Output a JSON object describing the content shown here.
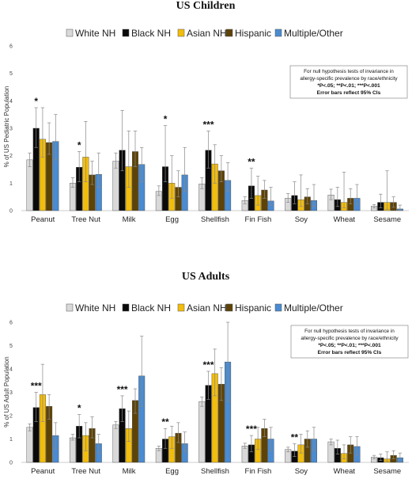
{
  "colors": {
    "White NH": "#d9d9d9",
    "Black NH": "#0a0a0a",
    "Asian NH": "#f2bd0d",
    "Hispanic": "#5e4307",
    "Multiple/Other": "#4a8bd1"
  },
  "chart_data": [
    {
      "type": "bar",
      "title": "US Children",
      "ylabel": "% of US Pediatric Population",
      "ylim": [
        0,
        6
      ],
      "yticks": [
        0,
        1,
        2,
        3,
        4,
        5,
        6
      ],
      "legend_position": "top",
      "annotation": {
        "line1": "For null hypothesis tests of invariance in",
        "line2": "allergy-specific prevalence by race/ethnicity",
        "line3": "*P<.05; **P<.01; ***P<.001",
        "line4": "Error bars reflect 95% CIs"
      },
      "categories": [
        "Peanut",
        "Tree Nut",
        "Milk",
        "Egg",
        "Shellfish",
        "Fin Fish",
        "Soy",
        "Wheat",
        "Sesame"
      ],
      "significance": [
        "*",
        "*",
        "",
        "*",
        "***",
        "**",
        "",
        "",
        ""
      ],
      "series": [
        {
          "name": "White NH",
          "values": [
            1.85,
            1.0,
            1.8,
            0.7,
            0.97,
            0.37,
            0.45,
            0.57,
            0.16
          ],
          "err_low": [
            1.6,
            0.85,
            1.55,
            0.55,
            0.8,
            0.25,
            0.3,
            0.4,
            0.1
          ],
          "err_high": [
            2.1,
            1.2,
            2.1,
            0.9,
            1.2,
            0.5,
            0.62,
            0.78,
            0.22
          ]
        },
        {
          "name": "Black NH",
          "values": [
            3.0,
            1.58,
            2.2,
            1.6,
            2.2,
            0.9,
            0.55,
            0.4,
            0.3
          ],
          "err_low": [
            2.3,
            1.05,
            1.45,
            1.05,
            1.55,
            0.45,
            0.25,
            0.15,
            0.1
          ],
          "err_high": [
            3.75,
            2.15,
            3.65,
            3.1,
            2.9,
            1.55,
            1.05,
            0.85,
            0.6
          ]
        },
        {
          "name": "Asian NH",
          "values": [
            2.6,
            1.95,
            1.6,
            1.0,
            1.7,
            0.55,
            0.4,
            0.3,
            0.3
          ],
          "err_low": [
            1.95,
            1.05,
            0.85,
            0.45,
            1.0,
            0.2,
            0.15,
            0.1,
            0.05
          ],
          "err_high": [
            3.75,
            3.25,
            2.9,
            2.0,
            2.4,
            1.25,
            1.3,
            1.4,
            1.45
          ]
        },
        {
          "name": "Hispanic",
          "values": [
            2.48,
            1.3,
            2.15,
            0.85,
            1.45,
            0.75,
            0.5,
            0.45,
            0.3
          ],
          "err_low": [
            2.05,
            0.95,
            1.6,
            0.5,
            1.05,
            0.45,
            0.25,
            0.25,
            0.12
          ],
          "err_high": [
            3.2,
            1.8,
            2.9,
            1.45,
            2.0,
            1.1,
            0.8,
            0.8,
            0.5
          ]
        },
        {
          "name": "Multiple/Other",
          "values": [
            2.52,
            1.32,
            1.68,
            1.3,
            1.1,
            0.35,
            0.37,
            0.45,
            0.06
          ],
          "err_low": [
            1.85,
            0.85,
            1.05,
            0.7,
            0.7,
            0.2,
            0.15,
            0.22,
            0.02
          ],
          "err_high": [
            3.5,
            2.1,
            2.3,
            2.3,
            1.75,
            0.85,
            0.95,
            0.95,
            0.2
          ]
        }
      ]
    },
    {
      "type": "bar",
      "title": "US Adults",
      "ylabel": "% of US Adult Population",
      "ylim": [
        0,
        6
      ],
      "yticks": [
        0,
        1,
        2,
        3,
        4,
        5,
        6
      ],
      "legend_position": "top",
      "annotation": {
        "line1": "For null hypothesis tests of invariance in",
        "line2": "allergy-specific prevalence by race/ethnicity",
        "line3": "*P<.05; **P<.01; ***P<.001",
        "line4": "Error bars reflect 95% CIs"
      },
      "categories": [
        "Peanut",
        "Tree Nut",
        "Milk",
        "Egg",
        "Shellfish",
        "Fin Fish",
        "Soy",
        "Wheat",
        "Sesame"
      ],
      "significance": [
        "***",
        "*",
        "***",
        "**",
        "***",
        "***",
        "**",
        "",
        ""
      ],
      "series": [
        {
          "name": "White NH",
          "values": [
            1.5,
            1.05,
            1.6,
            0.6,
            2.6,
            0.7,
            0.55,
            0.88,
            0.22
          ],
          "err_low": [
            1.35,
            0.95,
            1.45,
            0.5,
            2.4,
            0.6,
            0.45,
            0.75,
            0.15
          ],
          "err_high": [
            1.65,
            1.2,
            1.75,
            0.7,
            2.8,
            0.82,
            0.65,
            1.0,
            0.3
          ]
        },
        {
          "name": "Black NH",
          "values": [
            2.35,
            1.55,
            2.3,
            1.0,
            3.3,
            0.75,
            0.48,
            0.6,
            0.2
          ],
          "err_low": [
            1.75,
            1.05,
            1.75,
            0.6,
            2.7,
            0.45,
            0.25,
            0.35,
            0.08
          ],
          "err_high": [
            3.0,
            2.05,
            2.85,
            1.45,
            3.9,
            1.15,
            0.8,
            0.95,
            0.35
          ]
        },
        {
          "name": "Asian NH",
          "values": [
            2.9,
            1.15,
            1.45,
            1.1,
            3.8,
            1.0,
            0.75,
            0.38,
            0.15
          ],
          "err_low": [
            1.75,
            0.5,
            0.9,
            0.6,
            2.85,
            0.55,
            0.4,
            0.15,
            0.05
          ],
          "err_high": [
            4.2,
            1.7,
            2.2,
            1.55,
            4.85,
            1.5,
            1.2,
            0.75,
            0.45
          ]
        },
        {
          "name": "Hispanic",
          "values": [
            2.4,
            1.45,
            2.65,
            1.25,
            3.35,
            1.45,
            1.0,
            0.75,
            0.3
          ],
          "err_low": [
            1.85,
            1.05,
            2.1,
            0.85,
            2.65,
            1.1,
            0.65,
            0.4,
            0.15
          ],
          "err_high": [
            2.9,
            1.95,
            3.15,
            1.7,
            4.05,
            1.85,
            1.35,
            1.1,
            0.5
          ]
        },
        {
          "name": "Multiple/Other",
          "values": [
            1.15,
            0.8,
            3.7,
            0.8,
            4.3,
            1.0,
            1.0,
            0.68,
            0.2
          ],
          "err_low": [
            0.6,
            0.4,
            2.4,
            0.45,
            2.6,
            0.5,
            0.5,
            0.3,
            0.05
          ],
          "err_high": [
            1.7,
            1.2,
            5.4,
            1.3,
            6.0,
            1.5,
            1.5,
            1.1,
            0.4
          ]
        }
      ]
    }
  ]
}
